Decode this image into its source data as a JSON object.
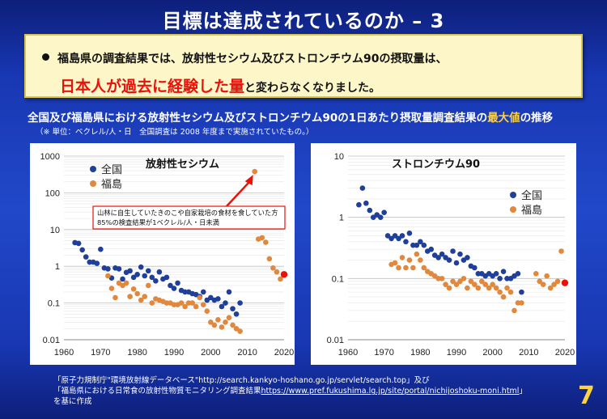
{
  "slide": {
    "title": "目標は達成されているのか – 3",
    "page_number": "7"
  },
  "summary": {
    "line1": "福島県の調査結果では、放射性セシウム及びストロンチウム90の摂取量は、",
    "line2_highlight": "日本人が過去に経験した量",
    "line2_rest": "と変わらなくなりました。"
  },
  "caption": {
    "part1": "全国及び福島県における放射性セシウム及びストロンチウム90の1日あたり摂取量調査結果の",
    "highlight": "最大値",
    "part2": "の推移",
    "sub": "（※ 単位：ベクレル/人・日　全国調査は 2008 年度まで実施されていたもの。）"
  },
  "source": {
    "line1": "「原子力規制庁\"環境放射線データベース\"http://search.kankyo-hoshano.go.jp/servlet/search.top」及び",
    "line2_prefix": "「福島県における日常食の放射性物質モニタリング調査結果",
    "line2_url": "https://www.pref.fukushima.lg.jp/site/portal/nichijoshoku-moni.html",
    "line2_suffix": "」",
    "line3": "を基に作成"
  },
  "colors": {
    "national": "#1f3f99",
    "fukushima": "#e0893e",
    "highlight_point": "#e8120b",
    "arrow": "#e8120b",
    "accent_yellow": "#ffd23f"
  },
  "chart_data": [
    {
      "type": "scatter",
      "title": "放射性セシウム",
      "y_scale": "log",
      "xlim": [
        1960,
        2020
      ],
      "ylim": [
        0.01,
        1000
      ],
      "x_ticks": [
        1960,
        1970,
        1980,
        1990,
        2000,
        2010,
        2020
      ],
      "y_ticks": [
        0.01,
        0.1,
        1,
        10,
        100,
        1000
      ],
      "y_tick_labels": [
        "0.01",
        "0.1",
        "1",
        "10",
        "100",
        "1000"
      ],
      "grid": true,
      "legend_position": "top-left",
      "series": [
        {
          "name": "全国",
          "points": [
            [
              1963,
              4.4
            ],
            [
              1964,
              4.2
            ],
            [
              1965,
              2.8
            ],
            [
              1966,
              1.8
            ],
            [
              1967,
              1.3
            ],
            [
              1968,
              1.3
            ],
            [
              1969,
              1.2
            ],
            [
              1970,
              2.9
            ],
            [
              1971,
              0.9
            ],
            [
              1972,
              0.85
            ],
            [
              1973,
              0.48
            ],
            [
              1974,
              0.9
            ],
            [
              1975,
              0.85
            ],
            [
              1976,
              0.45
            ],
            [
              1977,
              0.68
            ],
            [
              1978,
              0.75
            ],
            [
              1979,
              0.5
            ],
            [
              1980,
              0.6
            ],
            [
              1981,
              0.95
            ],
            [
              1982,
              0.55
            ],
            [
              1983,
              0.75
            ],
            [
              1984,
              0.5
            ],
            [
              1985,
              0.4
            ],
            [
              1986,
              0.7
            ],
            [
              1987,
              0.45
            ],
            [
              1988,
              0.5
            ],
            [
              1989,
              0.3
            ],
            [
              1990,
              0.25
            ],
            [
              1991,
              0.35
            ],
            [
              1992,
              0.22
            ],
            [
              1993,
              0.2
            ],
            [
              1994,
              0.2
            ],
            [
              1995,
              0.18
            ],
            [
              1996,
              0.17
            ],
            [
              1997,
              0.15
            ],
            [
              1998,
              0.2
            ],
            [
              1999,
              0.12
            ],
            [
              2000,
              0.14
            ],
            [
              2001,
              0.12
            ],
            [
              2002,
              0.13
            ],
            [
              2003,
              0.08
            ],
            [
              2004,
              0.1
            ],
            [
              2005,
              0.2
            ],
            [
              2006,
              0.07
            ],
            [
              2007,
              0.05
            ],
            [
              2008,
              0.1
            ]
          ]
        },
        {
          "name": "福島",
          "points": [
            [
              1972,
              0.55
            ],
            [
              1973,
              0.25
            ],
            [
              1974,
              0.14
            ],
            [
              1975,
              0.35
            ],
            [
              1976,
              0.3
            ],
            [
              1977,
              0.35
            ],
            [
              1978,
              0.15
            ],
            [
              1979,
              0.24
            ],
            [
              1980,
              0.18
            ],
            [
              1981,
              0.12
            ],
            [
              1982,
              0.15
            ],
            [
              1983,
              0.3
            ],
            [
              1984,
              0.1
            ],
            [
              1985,
              0.13
            ],
            [
              1986,
              0.12
            ],
            [
              1987,
              0.11
            ],
            [
              1988,
              0.1
            ],
            [
              1989,
              0.1
            ],
            [
              1990,
              0.09
            ],
            [
              1991,
              0.09
            ],
            [
              1992,
              0.1
            ],
            [
              1993,
              0.08
            ],
            [
              1994,
              0.1
            ],
            [
              1995,
              0.1
            ],
            [
              1996,
              0.08
            ],
            [
              1997,
              0.14
            ],
            [
              1998,
              0.09
            ],
            [
              1999,
              0.06
            ],
            [
              2000,
              0.03
            ],
            [
              2001,
              0.025
            ],
            [
              2002,
              0.035
            ],
            [
              2003,
              0.022
            ],
            [
              2004,
              0.03
            ],
            [
              2005,
              0.04
            ],
            [
              2006,
              0.025
            ],
            [
              2007,
              0.02
            ],
            [
              2008,
              0.017
            ],
            [
              2012,
              380
            ],
            [
              2013,
              5.5
            ],
            [
              2014,
              6.0
            ],
            [
              2015,
              4.5
            ],
            [
              2016,
              1.6
            ],
            [
              2017,
              0.9
            ],
            [
              2018,
              0.7
            ],
            [
              2019,
              0.45
            ]
          ]
        }
      ],
      "latest_point": [
        2020,
        0.6
      ],
      "annotation": {
        "text_line1": "山林に自生していたきのこや自家栽培の食材を食していた方",
        "text_line2": "85%の検査結果が1ベクレル/人・日未満",
        "points_to": [
          2012,
          380
        ]
      }
    },
    {
      "type": "scatter",
      "title": "ストロンチウム90",
      "y_scale": "log",
      "xlim": [
        1960,
        2020
      ],
      "ylim": [
        0.01,
        10
      ],
      "x_ticks": [
        1960,
        1970,
        1980,
        1990,
        2000,
        2010,
        2020
      ],
      "y_ticks": [
        0.01,
        0.1,
        1,
        10
      ],
      "y_tick_labels": [
        "0.01",
        "0.1",
        "1",
        "10"
      ],
      "grid": true,
      "legend_position": "center-right",
      "series": [
        {
          "name": "全国",
          "points": [
            [
              1963,
              1.6
            ],
            [
              1964,
              3.0
            ],
            [
              1965,
              1.7
            ],
            [
              1966,
              1.3
            ],
            [
              1967,
              1.0
            ],
            [
              1968,
              1.1
            ],
            [
              1969,
              1.0
            ],
            [
              1970,
              1.2
            ],
            [
              1971,
              0.5
            ],
            [
              1972,
              0.45
            ],
            [
              1973,
              0.5
            ],
            [
              1974,
              0.45
            ],
            [
              1975,
              0.5
            ],
            [
              1976,
              0.4
            ],
            [
              1977,
              0.55
            ],
            [
              1978,
              0.35
            ],
            [
              1979,
              0.35
            ],
            [
              1980,
              0.4
            ],
            [
              1981,
              0.35
            ],
            [
              1982,
              0.28
            ],
            [
              1983,
              0.3
            ],
            [
              1984,
              0.24
            ],
            [
              1985,
              0.22
            ],
            [
              1986,
              0.25
            ],
            [
              1987,
              0.22
            ],
            [
              1988,
              0.2
            ],
            [
              1989,
              0.28
            ],
            [
              1990,
              0.18
            ],
            [
              1991,
              0.25
            ],
            [
              1992,
              0.2
            ],
            [
              1993,
              0.22
            ],
            [
              1994,
              0.16
            ],
            [
              1995,
              0.15
            ],
            [
              1996,
              0.12
            ],
            [
              1997,
              0.12
            ],
            [
              1998,
              0.11
            ],
            [
              1999,
              0.12
            ],
            [
              2000,
              0.11
            ],
            [
              2001,
              0.12
            ],
            [
              2002,
              0.1
            ],
            [
              2003,
              0.13
            ],
            [
              2004,
              0.1
            ],
            [
              2005,
              0.1
            ],
            [
              2006,
              0.11
            ],
            [
              2007,
              0.12
            ],
            [
              2008,
              0.06
            ]
          ]
        },
        {
          "name": "福島",
          "points": [
            [
              1972,
              0.17
            ],
            [
              1973,
              0.18
            ],
            [
              1974,
              0.15
            ],
            [
              1975,
              0.22
            ],
            [
              1976,
              0.15
            ],
            [
              1977,
              0.2
            ],
            [
              1978,
              0.15
            ],
            [
              1979,
              0.25
            ],
            [
              1980,
              0.2
            ],
            [
              1981,
              0.15
            ],
            [
              1982,
              0.13
            ],
            [
              1983,
              0.12
            ],
            [
              1984,
              0.11
            ],
            [
              1985,
              0.1
            ],
            [
              1986,
              0.1
            ],
            [
              1987,
              0.08
            ],
            [
              1988,
              0.07
            ],
            [
              1989,
              0.09
            ],
            [
              1990,
              0.08
            ],
            [
              1991,
              0.09
            ],
            [
              1992,
              0.1
            ],
            [
              1993,
              0.07
            ],
            [
              1994,
              0.09
            ],
            [
              1995,
              0.08
            ],
            [
              1996,
              0.07
            ],
            [
              1997,
              0.09
            ],
            [
              1998,
              0.08
            ],
            [
              1999,
              0.07
            ],
            [
              2000,
              0.08
            ],
            [
              2001,
              0.07
            ],
            [
              2002,
              0.06
            ],
            [
              2003,
              0.05
            ],
            [
              2004,
              0.07
            ],
            [
              2005,
              0.06
            ],
            [
              2006,
              0.03
            ],
            [
              2007,
              0.04
            ],
            [
              2008,
              0.04
            ],
            [
              2012,
              0.12
            ],
            [
              2013,
              0.09
            ],
            [
              2014,
              0.08
            ],
            [
              2015,
              0.11
            ],
            [
              2016,
              0.07
            ],
            [
              2017,
              0.08
            ],
            [
              2018,
              0.09
            ],
            [
              2019,
              0.28
            ]
          ]
        }
      ],
      "latest_point": [
        2020,
        0.085
      ]
    }
  ]
}
